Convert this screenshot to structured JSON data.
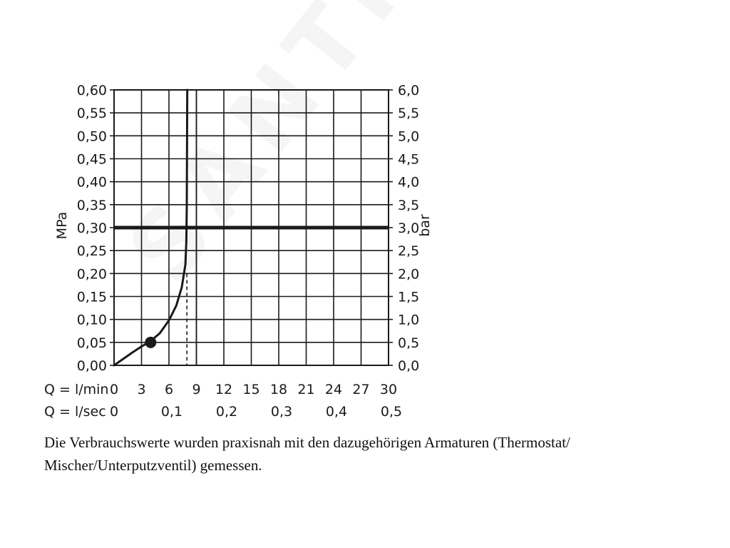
{
  "chart_data": {
    "type": "line",
    "title": "",
    "y_left_label": "MPa",
    "y_right_label": "bar",
    "x_primary_label": "Q = l/min",
    "x_secondary_label": "Q = l/sec",
    "x_ticks_lmin": [
      "0",
      "3",
      "6",
      "9",
      "12",
      "15",
      "18",
      "21",
      "24",
      "27",
      "30"
    ],
    "x_ticks_lsec": [
      "0",
      "0,1",
      "0,2",
      "0,3",
      "0,4",
      "0,5"
    ],
    "x_ticks_lsec_values": [
      0,
      6,
      12,
      18,
      24,
      30
    ],
    "y_ticks_left": [
      "0,00",
      "0,05",
      "0,10",
      "0,15",
      "0,20",
      "0,25",
      "0,30",
      "0,35",
      "0,40",
      "0,45",
      "0,50",
      "0,55",
      "0,60"
    ],
    "y_ticks_right": [
      "0,0",
      "0,5",
      "1,0",
      "1,5",
      "2,0",
      "2,5",
      "3,0",
      "3,5",
      "4,0",
      "4,5",
      "5,0",
      "5,5",
      "6,0"
    ],
    "xlim": [
      0,
      30
    ],
    "ylim": [
      0,
      0.6
    ],
    "grid": true,
    "series": [
      {
        "x": [
          0,
          1,
          2,
          3,
          4,
          5,
          6,
          6.8,
          7.4,
          7.8,
          7.9,
          7.95,
          8.0
        ],
        "y": [
          0,
          0.014,
          0.028,
          0.041,
          0.053,
          0.07,
          0.098,
          0.13,
          0.17,
          0.22,
          0.27,
          0.35,
          0.6
        ]
      }
    ],
    "highlight_point": {
      "x": 4,
      "y": 0.05
    },
    "reference_line_y": 0.3,
    "dashed_marker_x": 8,
    "dashed_marker_y": 0.2,
    "vertical_line_x": 9
  },
  "caption": {
    "line1": "Die Verbrauchswerte wurden praxisnah mit den dazugehörigen Armaturen (Thermostat/",
    "line2": "Mischer/Unterputzventil) gemessen."
  },
  "watermark": "SANTINO"
}
